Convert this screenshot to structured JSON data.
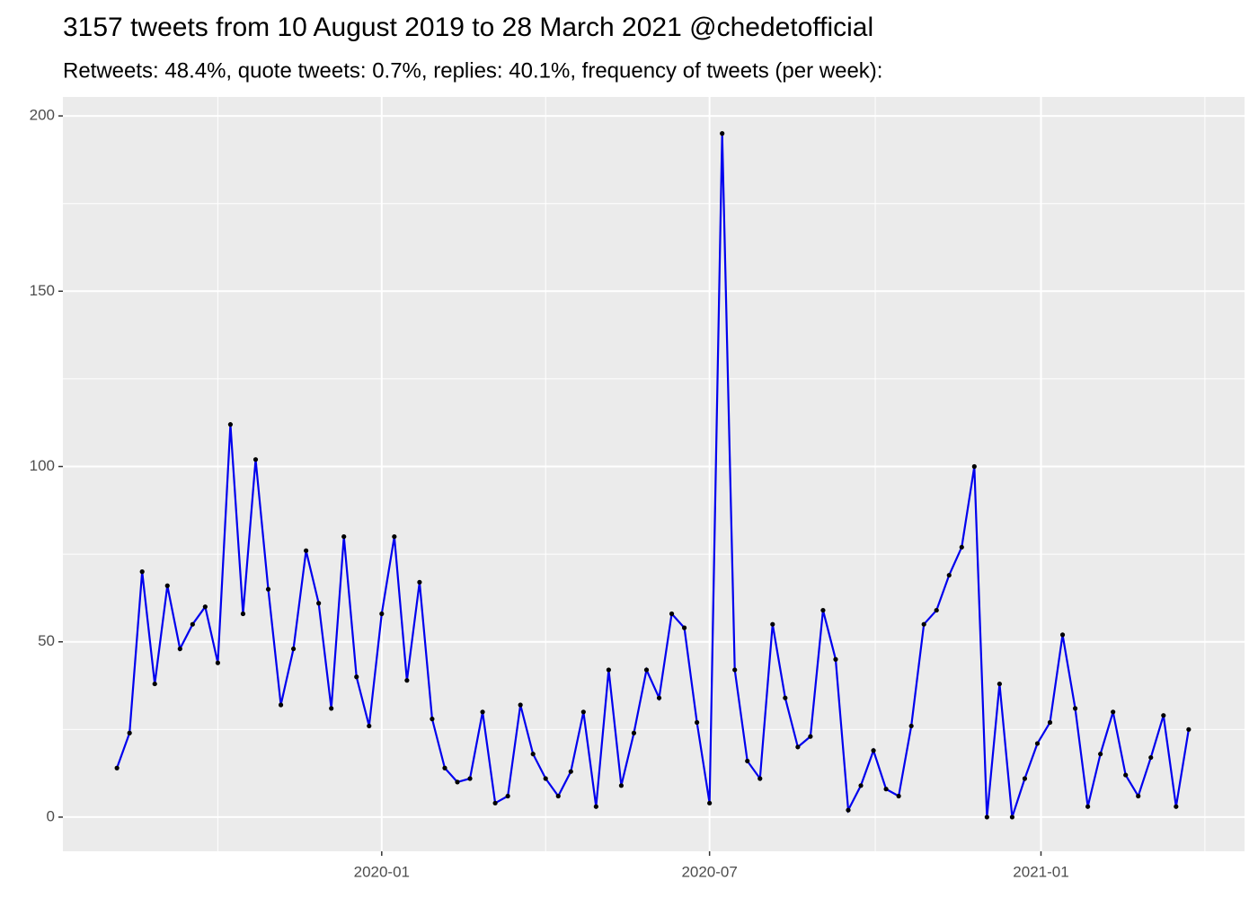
{
  "chart_data": {
    "type": "line",
    "title": "3157 tweets from 10 August 2019 to 28 March 2021 @chedetofficial",
    "subtitle": "Retweets: 48.4%, quote tweets: 0.7%, replies: 40.1%, frequency of tweets (per week):",
    "x": [
      "2019-08-07",
      "2019-08-14",
      "2019-08-21",
      "2019-08-28",
      "2019-09-04",
      "2019-09-11",
      "2019-09-18",
      "2019-09-25",
      "2019-10-02",
      "2019-10-09",
      "2019-10-16",
      "2019-10-23",
      "2019-10-30",
      "2019-11-06",
      "2019-11-13",
      "2019-11-20",
      "2019-11-27",
      "2019-12-04",
      "2019-12-11",
      "2019-12-18",
      "2019-12-25",
      "2020-01-01",
      "2020-01-08",
      "2020-01-15",
      "2020-01-22",
      "2020-01-29",
      "2020-02-05",
      "2020-02-12",
      "2020-02-19",
      "2020-02-26",
      "2020-03-04",
      "2020-03-11",
      "2020-03-18",
      "2020-03-25",
      "2020-04-01",
      "2020-04-08",
      "2020-04-15",
      "2020-04-22",
      "2020-04-29",
      "2020-05-06",
      "2020-05-13",
      "2020-05-20",
      "2020-05-27",
      "2020-06-03",
      "2020-06-10",
      "2020-06-17",
      "2020-06-24",
      "2020-07-01",
      "2020-07-08",
      "2020-07-15",
      "2020-07-22",
      "2020-07-29",
      "2020-08-05",
      "2020-08-12",
      "2020-08-19",
      "2020-08-26",
      "2020-09-02",
      "2020-09-09",
      "2020-09-16",
      "2020-09-23",
      "2020-09-30",
      "2020-10-07",
      "2020-10-14",
      "2020-10-21",
      "2020-10-28",
      "2020-11-04",
      "2020-11-11",
      "2020-11-18",
      "2020-11-25",
      "2020-12-02",
      "2020-12-09",
      "2020-12-16",
      "2020-12-23",
      "2020-12-30",
      "2021-01-06",
      "2021-01-13",
      "2021-01-20",
      "2021-01-27",
      "2021-02-03",
      "2021-02-10",
      "2021-02-17",
      "2021-02-24",
      "2021-03-03",
      "2021-03-10",
      "2021-03-17",
      "2021-03-24"
    ],
    "series": [
      {
        "name": "tweets",
        "color": "#0000ee",
        "point_color": "#000000",
        "values": [
          14,
          24,
          70,
          38,
          66,
          48,
          55,
          60,
          44,
          112,
          58,
          102,
          65,
          32,
          48,
          76,
          61,
          31,
          80,
          40,
          26,
          58,
          80,
          39,
          67,
          28,
          14,
          10,
          11,
          30,
          4,
          6,
          32,
          18,
          11,
          6,
          13,
          30,
          3,
          42,
          9,
          24,
          42,
          34,
          58,
          54,
          27,
          4,
          195,
          42,
          16,
          11,
          55,
          34,
          20,
          23,
          59,
          45,
          2,
          9,
          19,
          8,
          6,
          26,
          55,
          59,
          69,
          77,
          100,
          0,
          38,
          0,
          11,
          21,
          27,
          52,
          31,
          3,
          18,
          30,
          12,
          6,
          17,
          29,
          3,
          25
        ]
      }
    ],
    "xlim": [
      "2019-07-08",
      "2021-04-24"
    ],
    "xticks": [
      {
        "value": "2020-01-01",
        "label": "2020-01"
      },
      {
        "value": "2020-07-01",
        "label": "2020-07"
      },
      {
        "value": "2021-01-01",
        "label": "2021-01"
      }
    ],
    "ylim": [
      -9.75,
      205.4
    ],
    "yticks": [
      0,
      50,
      100,
      150,
      200
    ],
    "grid": true
  }
}
